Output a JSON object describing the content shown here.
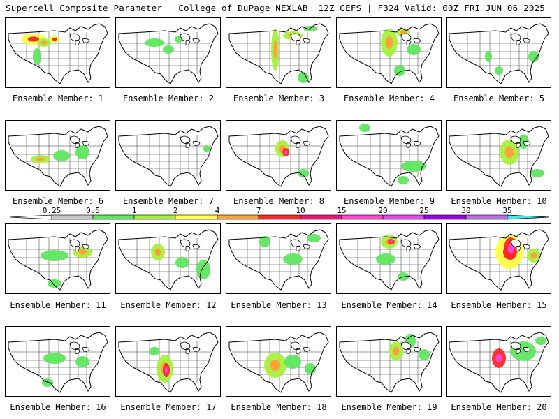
{
  "header": {
    "title_left": "Supercell Composite Parameter | College of DuPage NEXLAB",
    "title_right": "12Z GEFS | F324 Valid: 00Z FRI JUN 06 2025"
  },
  "colorbar": {
    "ticks": [
      "0.25",
      "0.5",
      "1",
      "2",
      "4",
      "7",
      "10",
      "15",
      "20",
      "25",
      "30",
      "35"
    ],
    "colors": [
      "#c8c8c8",
      "#5ee65e",
      "#a6f03c",
      "#ffff46",
      "#ffa03c",
      "#ff2828",
      "#f0147a",
      "#ff46c8",
      "#e646f0",
      "#a000e6",
      "#b96ee6",
      "#46e6e6"
    ]
  },
  "members": [
    {
      "label": "Ensemble Member: 1",
      "blobs": [
        [
          40,
          30,
          18,
          8,
          3
        ],
        [
          55,
          35,
          10,
          6,
          2
        ],
        [
          70,
          30,
          8,
          5,
          3
        ],
        [
          45,
          55,
          6,
          12,
          1
        ]
      ]
    },
    {
      "label": "Ensemble Member: 2",
      "blobs": [
        [
          55,
          35,
          14,
          6,
          1
        ],
        [
          75,
          45,
          8,
          6,
          1
        ],
        [
          90,
          30,
          6,
          5,
          1
        ]
      ]
    },
    {
      "label": "Ensemble Member: 3",
      "blobs": [
        [
          70,
          45,
          6,
          30,
          2
        ],
        [
          95,
          25,
          14,
          6,
          2
        ],
        [
          120,
          15,
          10,
          4,
          1
        ],
        [
          110,
          85,
          8,
          8,
          1
        ]
      ]
    },
    {
      "label": "Ensemble Member: 4",
      "blobs": [
        [
          75,
          35,
          12,
          20,
          2
        ],
        [
          95,
          20,
          10,
          6,
          2
        ],
        [
          110,
          45,
          10,
          8,
          1
        ],
        [
          90,
          75,
          8,
          8,
          1
        ]
      ]
    },
    {
      "label": "Ensemble Member: 5",
      "blobs": [
        [
          60,
          55,
          5,
          8,
          1
        ],
        [
          125,
          55,
          8,
          8,
          1
        ],
        [
          75,
          75,
          6,
          6,
          1
        ]
      ]
    },
    {
      "label": "Ensemble Member: 6",
      "blobs": [
        [
          50,
          55,
          14,
          6,
          2
        ],
        [
          80,
          50,
          12,
          8,
          1
        ],
        [
          110,
          45,
          10,
          10,
          1
        ]
      ]
    },
    {
      "label": "Ensemble Member: 7",
      "blobs": [
        [
          130,
          40,
          5,
          5,
          1
        ]
      ]
    },
    {
      "label": "Ensemble Member: 8",
      "blobs": [
        [
          80,
          40,
          10,
          12,
          2
        ],
        [
          85,
          45,
          5,
          6,
          5
        ],
        [
          110,
          75,
          8,
          6,
          1
        ]
      ]
    },
    {
      "label": "Ensemble Member: 9",
      "blobs": [
        [
          40,
          10,
          8,
          6,
          1
        ],
        [
          110,
          65,
          18,
          8,
          1
        ],
        [
          95,
          85,
          8,
          6,
          1
        ]
      ]
    },
    {
      "label": "Ensemble Member: 10",
      "blobs": [
        [
          90,
          45,
          14,
          18,
          2
        ],
        [
          110,
          30,
          8,
          10,
          1
        ],
        [
          130,
          75,
          10,
          6,
          1
        ]
      ]
    },
    {
      "label": "Ensemble Member: 11",
      "blobs": [
        [
          70,
          45,
          20,
          8,
          1
        ],
        [
          110,
          40,
          14,
          8,
          2
        ],
        [
          70,
          85,
          10,
          6,
          1
        ]
      ]
    },
    {
      "label": "Ensemble Member: 12",
      "blobs": [
        [
          60,
          40,
          10,
          12,
          2
        ],
        [
          95,
          55,
          10,
          8,
          1
        ],
        [
          125,
          65,
          10,
          14,
          1
        ]
      ]
    },
    {
      "label": "Ensemble Member: 13",
      "blobs": [
        [
          55,
          25,
          8,
          8,
          1
        ],
        [
          95,
          50,
          14,
          8,
          1
        ],
        [
          125,
          20,
          10,
          6,
          1
        ]
      ]
    },
    {
      "label": "Ensemble Member: 14",
      "blobs": [
        [
          75,
          25,
          12,
          10,
          2
        ],
        [
          78,
          25,
          5,
          4,
          5
        ],
        [
          70,
          50,
          14,
          8,
          1
        ],
        [
          95,
          75,
          8,
          6,
          1
        ]
      ]
    },
    {
      "label": "Ensemble Member: 15",
      "blobs": [
        [
          90,
          40,
          20,
          24,
          3
        ],
        [
          92,
          35,
          10,
          16,
          5
        ],
        [
          125,
          45,
          10,
          10,
          2
        ]
      ]
    },
    {
      "label": "Ensemble Member: 16",
      "blobs": [
        [
          70,
          45,
          16,
          8,
          1
        ],
        [
          110,
          50,
          10,
          8,
          1
        ],
        [
          60,
          80,
          8,
          6,
          1
        ]
      ]
    },
    {
      "label": "Ensemble Member: 17",
      "blobs": [
        [
          70,
          60,
          12,
          20,
          2
        ],
        [
          72,
          62,
          5,
          10,
          5
        ],
        [
          55,
          35,
          8,
          6,
          1
        ]
      ]
    },
    {
      "label": "Ensemble Member: 18",
      "blobs": [
        [
          70,
          55,
          16,
          18,
          2
        ],
        [
          95,
          50,
          12,
          10,
          1
        ],
        [
          120,
          60,
          8,
          8,
          1
        ]
      ]
    },
    {
      "label": "Ensemble Member: 19",
      "blobs": [
        [
          85,
          35,
          10,
          14,
          2
        ],
        [
          105,
          20,
          8,
          10,
          1
        ],
        [
          125,
          40,
          8,
          8,
          1
        ]
      ]
    },
    {
      "label": "Ensemble Member: 20",
      "blobs": [
        [
          75,
          45,
          10,
          14,
          5
        ],
        [
          110,
          35,
          18,
          14,
          1
        ],
        [
          135,
          20,
          8,
          6,
          1
        ]
      ]
    }
  ]
}
